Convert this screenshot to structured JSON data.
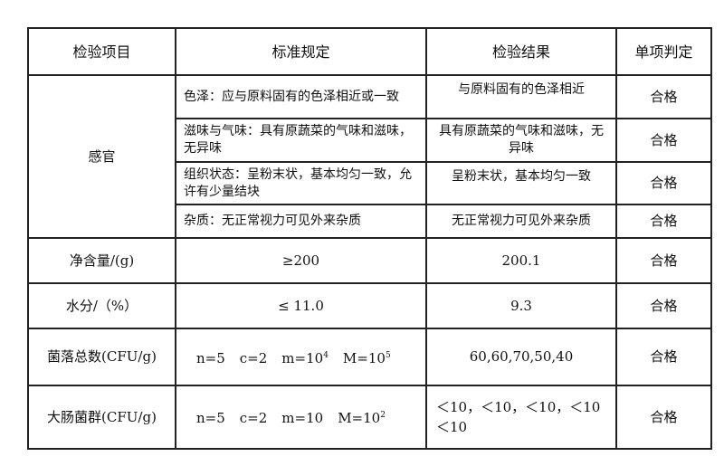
{
  "headers": [
    "检验项目",
    "标准规定",
    "检验结果",
    "单项判定"
  ],
  "sensory": {
    "label": "感官",
    "rows": [
      {
        "standard": "色泽：应与原料固有的色泽相近或一致",
        "result": "与原料固有的色泽相近",
        "verdict": "合格"
      },
      {
        "standard": "滋味与气味：具有原蔬菜的气味和滋味，无异味",
        "result": "具有原蔬菜的气味和滋味，无异味",
        "verdict": "合格"
      },
      {
        "standard": "组织状态：呈粉末状，基本均匀一致，允许有少量结块",
        "result": "呈粉末状，基本均匀一致",
        "verdict": "合格"
      },
      {
        "standard": "杂质：无正常视力可见外来杂质",
        "result": "无正常视力可见外来杂质",
        "verdict": "合格"
      }
    ]
  },
  "net": {
    "label": "净含量/(g)",
    "standard": "≥200",
    "result": "200.1",
    "verdict": "合格"
  },
  "water": {
    "label": "水分/（%）",
    "standard": "≤ 11.0",
    "result": "9.3",
    "verdict": "合格"
  },
  "colony": {
    "label": "菌落总数(CFU/g)",
    "n": "n=5",
    "c": "c=2",
    "m": "m=10",
    "m_exp": "4",
    "M": "M=10",
    "M_exp": "5",
    "result": "60,60,70,50,40",
    "verdict": "合格"
  },
  "coliform": {
    "label": "大肠菌群(CFU/g)",
    "n": "n=5",
    "c": "c=2",
    "m": "m=10",
    "M": "M=10",
    "M_exp": "2",
    "result": "＜10，＜10，＜10，＜10 ＜10",
    "verdict": "合格"
  }
}
